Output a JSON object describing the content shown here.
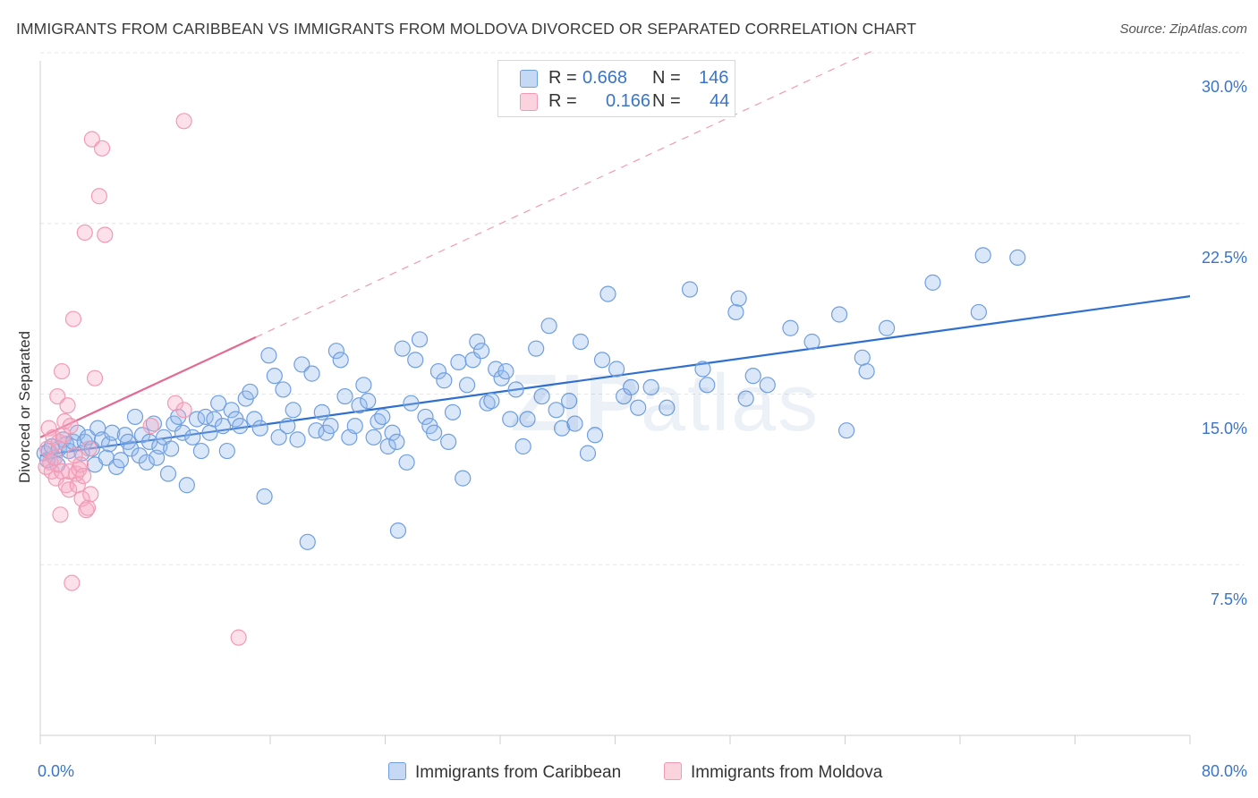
{
  "title": "IMMIGRANTS FROM CARIBBEAN VS IMMIGRANTS FROM MOLDOVA DIVORCED OR SEPARATED CORRELATION CHART",
  "source": "Source: ZipAtlas.com",
  "watermark": {
    "bold": "ZIP",
    "light": "atlas"
  },
  "legend": {
    "rows": [
      {
        "r_label": "R =",
        "r_value": "0.668",
        "n_label": "N =",
        "n_value": "146"
      },
      {
        "r_label": "R =",
        "r_value": "0.166",
        "n_label": "N =",
        "n_value": "44"
      }
    ]
  },
  "chart_data": {
    "type": "scatter",
    "title": "IMMIGRANTS FROM CARIBBEAN VS IMMIGRANTS FROM MOLDOVA DIVORCED OR SEPARATED CORRELATION CHART",
    "xlabel": "",
    "ylabel": "Divorced or Separated",
    "xlim": [
      0,
      80
    ],
    "ylim": [
      0,
      31.5
    ],
    "x_tick_labels": [
      "0.0%",
      "80.0%"
    ],
    "y_ticks": [
      7.5,
      15.0,
      22.5,
      30.0
    ],
    "y_tick_labels": [
      "7.5%",
      "15.0%",
      "22.5%",
      "30.0%"
    ],
    "grid": true,
    "legend_position": "top-center",
    "colors": {
      "caribbean": "#6f9fe0",
      "caribbean_line": "#2f6fcf",
      "moldova": "#f29ab5",
      "moldova_line": "#e36a93"
    },
    "series": [
      {
        "name": "Immigrants from Caribbean",
        "trend": {
          "x0": 0,
          "y0": 12.3,
          "x1": 80,
          "y1": 19.3
        },
        "points": [
          [
            0.3,
            12.4
          ],
          [
            0.5,
            12.1
          ],
          [
            0.6,
            12.5
          ],
          [
            0.8,
            12.7
          ],
          [
            1.0,
            12.2
          ],
          [
            1.2,
            11.9
          ],
          [
            1.3,
            12.6
          ],
          [
            1.6,
            13.0
          ],
          [
            1.8,
            12.8
          ],
          [
            2.0,
            12.5
          ],
          [
            2.3,
            12.9
          ],
          [
            2.6,
            13.3
          ],
          [
            2.9,
            12.4
          ],
          [
            3.1,
            12.9
          ],
          [
            3.3,
            13.1
          ],
          [
            3.6,
            12.6
          ],
          [
            3.8,
            11.9
          ],
          [
            4.0,
            13.5
          ],
          [
            4.3,
            13.0
          ],
          [
            4.6,
            12.2
          ],
          [
            4.8,
            12.8
          ],
          [
            5.0,
            13.3
          ],
          [
            5.3,
            11.8
          ],
          [
            5.6,
            12.1
          ],
          [
            5.9,
            13.2
          ],
          [
            6.1,
            12.9
          ],
          [
            6.3,
            12.6
          ],
          [
            6.6,
            14.0
          ],
          [
            6.9,
            12.3
          ],
          [
            7.1,
            13.2
          ],
          [
            7.4,
            12.0
          ],
          [
            7.6,
            12.9
          ],
          [
            7.9,
            13.7
          ],
          [
            8.1,
            12.2
          ],
          [
            8.3,
            12.7
          ],
          [
            8.6,
            13.1
          ],
          [
            8.9,
            11.5
          ],
          [
            9.1,
            12.6
          ],
          [
            9.3,
            13.7
          ],
          [
            9.6,
            14.0
          ],
          [
            9.9,
            13.3
          ],
          [
            10.2,
            11.0
          ],
          [
            10.6,
            13.1
          ],
          [
            10.9,
            13.9
          ],
          [
            11.2,
            12.5
          ],
          [
            11.5,
            14.0
          ],
          [
            11.8,
            13.3
          ],
          [
            12.1,
            13.9
          ],
          [
            12.4,
            14.6
          ],
          [
            12.7,
            13.6
          ],
          [
            13.0,
            12.5
          ],
          [
            13.3,
            14.3
          ],
          [
            13.6,
            13.9
          ],
          [
            13.9,
            13.6
          ],
          [
            14.3,
            14.8
          ],
          [
            14.6,
            15.1
          ],
          [
            14.9,
            13.9
          ],
          [
            15.3,
            13.5
          ],
          [
            15.6,
            10.5
          ],
          [
            15.9,
            16.7
          ],
          [
            16.3,
            15.8
          ],
          [
            16.6,
            13.1
          ],
          [
            16.9,
            15.2
          ],
          [
            17.2,
            13.6
          ],
          [
            17.6,
            14.3
          ],
          [
            17.9,
            13.0
          ],
          [
            18.2,
            16.3
          ],
          [
            18.6,
            8.5
          ],
          [
            18.9,
            15.9
          ],
          [
            19.2,
            13.4
          ],
          [
            19.6,
            14.2
          ],
          [
            19.9,
            13.3
          ],
          [
            20.2,
            13.6
          ],
          [
            20.6,
            16.9
          ],
          [
            20.9,
            16.5
          ],
          [
            21.2,
            14.9
          ],
          [
            21.5,
            13.1
          ],
          [
            21.9,
            13.6
          ],
          [
            22.2,
            14.5
          ],
          [
            22.5,
            15.4
          ],
          [
            22.8,
            14.7
          ],
          [
            23.2,
            13.1
          ],
          [
            23.5,
            13.8
          ],
          [
            23.8,
            14.0
          ],
          [
            24.2,
            12.7
          ],
          [
            24.5,
            13.3
          ],
          [
            24.8,
            12.9
          ],
          [
            24.9,
            9.0
          ],
          [
            25.2,
            17.0
          ],
          [
            25.5,
            12.0
          ],
          [
            25.8,
            14.6
          ],
          [
            26.1,
            16.5
          ],
          [
            26.4,
            17.4
          ],
          [
            26.8,
            14.0
          ],
          [
            27.1,
            13.6
          ],
          [
            27.4,
            13.3
          ],
          [
            27.7,
            16.0
          ],
          [
            28.1,
            15.6
          ],
          [
            28.4,
            12.9
          ],
          [
            28.7,
            14.2
          ],
          [
            29.1,
            16.4
          ],
          [
            29.4,
            11.3
          ],
          [
            29.7,
            15.4
          ],
          [
            30.1,
            16.5
          ],
          [
            30.4,
            17.3
          ],
          [
            30.7,
            16.9
          ],
          [
            31.1,
            14.6
          ],
          [
            31.4,
            14.7
          ],
          [
            31.7,
            16.1
          ],
          [
            32.1,
            15.7
          ],
          [
            32.4,
            16.0
          ],
          [
            32.7,
            13.9
          ],
          [
            33.1,
            15.2
          ],
          [
            33.6,
            12.7
          ],
          [
            33.9,
            13.9
          ],
          [
            34.5,
            17.0
          ],
          [
            34.9,
            14.9
          ],
          [
            35.4,
            18.0
          ],
          [
            35.9,
            14.3
          ],
          [
            36.3,
            13.5
          ],
          [
            36.8,
            14.7
          ],
          [
            37.2,
            13.7
          ],
          [
            37.6,
            17.3
          ],
          [
            38.1,
            12.4
          ],
          [
            38.6,
            13.2
          ],
          [
            39.1,
            16.5
          ],
          [
            39.5,
            19.4
          ],
          [
            40.1,
            16.1
          ],
          [
            40.6,
            14.9
          ],
          [
            41.1,
            15.3
          ],
          [
            41.6,
            14.4
          ],
          [
            42.5,
            15.3
          ],
          [
            43.6,
            14.4
          ],
          [
            45.2,
            19.6
          ],
          [
            46.1,
            16.1
          ],
          [
            46.4,
            15.4
          ],
          [
            48.4,
            18.6
          ],
          [
            48.6,
            19.2
          ],
          [
            49.1,
            14.8
          ],
          [
            49.6,
            15.8
          ],
          [
            50.6,
            15.4
          ],
          [
            52.2,
            17.9
          ],
          [
            53.7,
            17.3
          ],
          [
            55.6,
            18.5
          ],
          [
            56.1,
            13.4
          ],
          [
            57.2,
            16.6
          ],
          [
            57.5,
            16.0
          ],
          [
            58.9,
            17.9
          ],
          [
            62.1,
            19.9
          ],
          [
            65.3,
            18.6
          ],
          [
            65.6,
            21.1
          ],
          [
            68.0,
            21.0
          ]
        ]
      },
      {
        "name": "Immigrants from Moldova",
        "trend": {
          "x0": 0,
          "y0": 13.1,
          "x1": 15,
          "y1": 17.5
        },
        "points": [
          [
            0.4,
            11.8
          ],
          [
            0.5,
            12.6
          ],
          [
            0.6,
            13.5
          ],
          [
            0.7,
            12.0
          ],
          [
            0.8,
            11.6
          ],
          [
            0.9,
            13.1
          ],
          [
            1.0,
            12.2
          ],
          [
            1.1,
            11.3
          ],
          [
            1.2,
            14.9
          ],
          [
            1.3,
            12.9
          ],
          [
            1.4,
            9.7
          ],
          [
            1.5,
            16.0
          ],
          [
            1.5,
            11.6
          ],
          [
            1.6,
            13.2
          ],
          [
            1.7,
            13.8
          ],
          [
            1.8,
            11.0
          ],
          [
            1.9,
            14.5
          ],
          [
            2.0,
            11.6
          ],
          [
            2.0,
            10.8
          ],
          [
            2.1,
            13.6
          ],
          [
            2.2,
            6.7
          ],
          [
            2.3,
            18.3
          ],
          [
            2.4,
            12.3
          ],
          [
            2.5,
            11.5
          ],
          [
            2.6,
            11.0
          ],
          [
            2.7,
            11.7
          ],
          [
            2.8,
            11.9
          ],
          [
            2.9,
            10.4
          ],
          [
            3.0,
            11.4
          ],
          [
            3.1,
            22.1
          ],
          [
            3.2,
            9.9
          ],
          [
            3.3,
            10.0
          ],
          [
            3.4,
            12.6
          ],
          [
            3.5,
            10.6
          ],
          [
            3.6,
            26.2
          ],
          [
            3.8,
            15.7
          ],
          [
            4.1,
            23.7
          ],
          [
            4.3,
            25.8
          ],
          [
            4.5,
            22.0
          ],
          [
            7.7,
            13.6
          ],
          [
            9.4,
            14.6
          ],
          [
            10.0,
            14.3
          ],
          [
            10.0,
            27.0
          ],
          [
            13.8,
            4.3
          ]
        ]
      }
    ]
  }
}
